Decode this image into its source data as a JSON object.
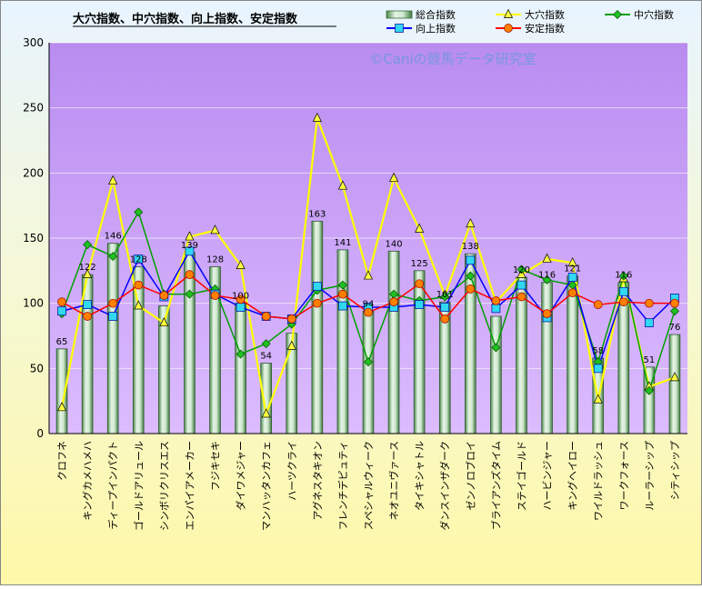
{
  "chart_data": {
    "type": "bar",
    "title": "大穴指数、中穴指数、向上指数、安定指数",
    "watermark": "©Caniの競馬データ研究室",
    "ylim": [
      0,
      300
    ],
    "yticks": [
      0,
      50,
      100,
      150,
      200,
      250,
      300
    ],
    "grid": true,
    "legend_position": "top-right",
    "categories": [
      "クロフネ",
      "キングカメハメハ",
      "ディープインパクト",
      "ゴールドアリュール",
      "シンボリクリスエス",
      "エンパイアメーカー",
      "フジキセキ",
      "ダイワメジャー",
      "マンハッタンカフェ",
      "ハーツクライ",
      "アグネスタキオン",
      "フレンチデピュティ",
      "スペシャルウィーク",
      "ネオユニヴァース",
      "タイキシャトル",
      "ダンスインザダーク",
      "ゼンノロブロイ",
      "ブライアンズタイム",
      "ステイゴールド",
      "ハービンジャー",
      "キングヘイロー",
      "ワイルドラッシュ",
      "ワークフォース",
      "ルーラーシップ",
      "シティシップ"
    ],
    "series": [
      {
        "name": "総合指数",
        "kind": "bar",
        "color": "#7fbf7f",
        "values": [
          65,
          122,
          146,
          128,
          98,
          139,
          128,
          100,
          54,
          77,
          163,
          141,
          94,
          140,
          125,
          101,
          138,
          90,
          120,
          116,
          121,
          58,
          116,
          51,
          76
        ],
        "labels": [
          "65",
          "122",
          "146",
          "128",
          "",
          "139",
          "128",
          "100",
          "54",
          "",
          "163",
          "141",
          "94",
          "140",
          "125",
          "101",
          "138",
          "",
          "120",
          "116",
          "121",
          "58",
          "116",
          "51",
          "76"
        ]
      },
      {
        "name": "大穴指数",
        "kind": "line",
        "color": "#ffff00",
        "marker": "triangle",
        "values": [
          20,
          122,
          194,
          98,
          85,
          151,
          156,
          129,
          15,
          67,
          242,
          190,
          121,
          196,
          157,
          106,
          161,
          101,
          122,
          134,
          131,
          26,
          119,
          36,
          43
        ]
      },
      {
        "name": "中穴指数",
        "kind": "line",
        "color": "#00a000",
        "marker": "diamond",
        "values": [
          92,
          145,
          136,
          170,
          107,
          107,
          111,
          61,
          69,
          84,
          110,
          114,
          55,
          107,
          102,
          105,
          121,
          66,
          126,
          118,
          114,
          55,
          121,
          33,
          94
        ]
      },
      {
        "name": "向上指数",
        "kind": "line",
        "color": "#0000ff",
        "marker": "square",
        "values": [
          94,
          99,
          90,
          134,
          105,
          140,
          107,
          97,
          90,
          88,
          113,
          98,
          97,
          97,
          99,
          97,
          133,
          96,
          114,
          89,
          120,
          50,
          109,
          85,
          104
        ]
      },
      {
        "name": "安定指数",
        "kind": "line",
        "color": "#ff0000",
        "marker": "circle",
        "values": [
          101,
          90,
          100,
          114,
          106,
          122,
          106,
          103,
          90,
          88,
          100,
          107,
          93,
          101,
          115,
          88,
          111,
          102,
          105,
          92,
          108,
          99,
          101,
          100,
          100
        ]
      }
    ]
  }
}
